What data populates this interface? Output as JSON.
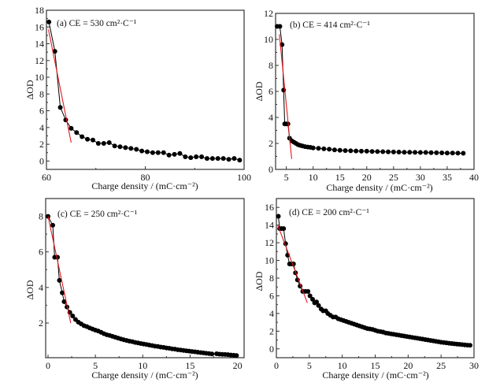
{
  "chart_data": [
    {
      "type": "scatter",
      "panel": "a",
      "annotation": "(a) CE = 530 cm²·C⁻¹",
      "xlabel": "Charge density / (mC·cm⁻²)",
      "ylabel": "ΔOD",
      "xlim": [
        60,
        100
      ],
      "ylim": [
        -1,
        18
      ],
      "xticks": [
        60,
        80,
        100
      ],
      "yticks": [
        0,
        2,
        4,
        6,
        8,
        10,
        12,
        14,
        16,
        18
      ],
      "x": [
        60.5,
        61.7,
        62.8,
        63.9,
        65.0,
        66.1,
        67.2,
        68.3,
        69.4,
        70.5,
        71.6,
        72.7,
        73.8,
        74.9,
        76.0,
        77.1,
        78.2,
        79.3,
        80.4,
        81.5,
        82.6,
        83.7,
        84.8,
        85.9,
        87.0,
        88.1,
        89.2,
        90.3,
        91.4,
        92.5,
        93.6,
        94.7,
        95.8,
        96.9,
        98.0,
        99.1
      ],
      "y": [
        16.6,
        13.1,
        6.4,
        4.9,
        3.9,
        3.4,
        2.9,
        2.6,
        2.5,
        2.1,
        2.1,
        2.2,
        1.8,
        1.7,
        1.6,
        1.5,
        1.4,
        1.2,
        1.1,
        1.0,
        1.0,
        1.0,
        0.7,
        0.8,
        0.9,
        0.5,
        0.4,
        0.5,
        0.5,
        0.3,
        0.3,
        0.3,
        0.3,
        0.2,
        0.3,
        0.1
      ],
      "fit_line": {
        "x": [
          60.4,
          65.0
        ],
        "y": [
          15.7,
          2.2
        ]
      }
    },
    {
      "type": "scatter",
      "panel": "b",
      "annotation": "(b) CE = 414 cm²·C⁻¹",
      "xlabel": "Charge density / (mC·cm⁻²)",
      "ylabel": "ΔOD",
      "xlim": [
        3,
        40
      ],
      "ylim": [
        0,
        12
      ],
      "xticks": [
        5,
        10,
        15,
        20,
        25,
        30,
        35,
        40
      ],
      "yticks": [
        0,
        2,
        4,
        6,
        8,
        10,
        12
      ],
      "x": [
        3.3,
        3.8,
        4.2,
        4.5,
        4.7,
        5.0,
        5.3,
        5.6,
        6.0,
        6.4,
        6.8,
        7.2,
        7.6,
        8.0,
        8.5,
        9.0,
        9.5,
        10.0,
        11.0,
        12.0,
        13.0,
        14.0,
        15.0,
        16.0,
        17.0,
        18.0,
        19.0,
        20.0,
        21.0,
        22.0,
        23.0,
        24.0,
        25.0,
        26.0,
        27.0,
        28.0,
        29.0,
        30.0,
        31.0,
        32.0,
        33.0,
        34.0,
        35.0,
        36.0,
        37.0,
        38.0
      ],
      "y": [
        11.0,
        11.0,
        9.6,
        6.1,
        3.5,
        3.5,
        3.5,
        2.4,
        2.2,
        2.1,
        2.0,
        1.9,
        1.85,
        1.8,
        1.75,
        1.72,
        1.7,
        1.65,
        1.62,
        1.58,
        1.55,
        1.5,
        1.47,
        1.45,
        1.43,
        1.42,
        1.4,
        1.4,
        1.38,
        1.37,
        1.36,
        1.35,
        1.34,
        1.33,
        1.32,
        1.32,
        1.31,
        1.3,
        1.3,
        1.29,
        1.28,
        1.27,
        1.26,
        1.26,
        1.25,
        1.24
      ],
      "fit_line": {
        "x": [
          3.7,
          6.0
        ],
        "y": [
          10.4,
          0.8
        ]
      }
    },
    {
      "type": "scatter",
      "panel": "c",
      "annotation": "(c) CE = 250 cm²·C⁻¹",
      "xlabel": "Charge density / (mC·cm⁻²)",
      "ylabel": "ΔOD",
      "xlim": [
        -0.25,
        20.7
      ],
      "ylim": [
        0.05,
        9.0
      ],
      "xticks": [
        0,
        5,
        10,
        15,
        20
      ],
      "yticks": [
        2,
        4,
        6,
        8
      ],
      "x": [
        0.0,
        0.5,
        0.7,
        1.0,
        1.2,
        1.5,
        1.7,
        2.0,
        2.3,
        2.6,
        2.9,
        3.2,
        3.5,
        3.8,
        4.1,
        4.4,
        4.7,
        5.0,
        5.3,
        5.6,
        5.9,
        6.2,
        6.5,
        6.8,
        7.1,
        7.4,
        7.7,
        8.0,
        8.3,
        8.6,
        8.9,
        9.2,
        9.5,
        9.8,
        10.1,
        10.4,
        10.7,
        11.0,
        11.3,
        11.6,
        11.9,
        12.2,
        12.5,
        12.8,
        13.1,
        13.4,
        13.7,
        14.0,
        14.3,
        14.6,
        14.9,
        15.2,
        15.5,
        15.8,
        16.1,
        16.4,
        16.7,
        17.0,
        17.3,
        17.8,
        18.1,
        18.4,
        18.7,
        19.0,
        19.3,
        19.6,
        19.9
      ],
      "y": [
        8.0,
        7.5,
        5.7,
        5.7,
        4.4,
        3.7,
        3.2,
        2.9,
        2.6,
        2.4,
        2.2,
        2.05,
        1.95,
        1.85,
        1.8,
        1.72,
        1.66,
        1.6,
        1.55,
        1.48,
        1.4,
        1.34,
        1.3,
        1.25,
        1.2,
        1.15,
        1.1,
        1.06,
        1.02,
        0.98,
        0.95,
        0.91,
        0.88,
        0.85,
        0.82,
        0.79,
        0.76,
        0.73,
        0.7,
        0.68,
        0.65,
        0.63,
        0.6,
        0.58,
        0.55,
        0.53,
        0.5,
        0.48,
        0.46,
        0.44,
        0.42,
        0.4,
        0.38,
        0.36,
        0.34,
        0.32,
        0.3,
        0.28,
        0.26,
        0.27,
        0.25,
        0.24,
        0.23,
        0.22,
        0.2,
        0.19,
        0.17
      ],
      "fit_line": {
        "x": [
          0.0,
          2.4
        ],
        "y": [
          8.0,
          2.0
        ]
      }
    },
    {
      "type": "scatter",
      "panel": "d",
      "annotation": "(d) CE = 200 cm²·C⁻¹",
      "xlabel": "Charge density / (mC·cm⁻²)",
      "ylabel": "ΔOD",
      "xlim": [
        0,
        30
      ],
      "ylim": [
        -1,
        17
      ],
      "xticks": [
        0,
        5,
        10,
        15,
        20,
        25,
        30
      ],
      "yticks": [
        0,
        2,
        4,
        6,
        8,
        10,
        12,
        14,
        16
      ],
      "x": [
        0.3,
        0.5,
        0.8,
        1.1,
        1.4,
        1.7,
        2.0,
        2.3,
        2.6,
        2.9,
        3.2,
        3.6,
        4.0,
        4.4,
        4.8,
        5.1,
        5.5,
        5.8,
        6.1,
        6.4,
        6.8,
        7.1,
        7.5,
        7.8,
        8.2,
        8.6,
        9.0,
        9.4,
        9.8,
        10.2,
        10.6,
        11.0,
        11.4,
        11.8,
        12.2,
        12.6,
        13.0,
        13.4,
        13.8,
        14.2,
        14.6,
        15.0,
        15.4,
        15.8,
        16.2,
        16.6,
        17.0,
        17.4,
        17.8,
        18.2,
        18.6,
        19.0,
        19.4,
        19.8,
        20.2,
        20.6,
        21.0,
        21.4,
        21.8,
        22.2,
        22.6,
        23.0,
        23.4,
        23.8,
        24.2,
        24.6,
        25.0,
        25.4,
        25.8,
        26.2,
        26.6,
        27.0,
        27.4,
        27.8,
        28.2,
        28.6,
        29.0,
        29.4
      ],
      "y": [
        15.0,
        13.6,
        13.6,
        13.6,
        11.9,
        10.6,
        9.6,
        9.6,
        9.6,
        8.6,
        7.8,
        7.1,
        6.5,
        6.5,
        6.5,
        6.0,
        5.6,
        5.2,
        5.3,
        4.9,
        4.5,
        4.3,
        4.3,
        4.0,
        3.8,
        3.6,
        3.6,
        3.4,
        3.3,
        3.2,
        3.1,
        3.0,
        2.9,
        2.8,
        2.7,
        2.6,
        2.5,
        2.4,
        2.3,
        2.25,
        2.2,
        2.1,
        2.0,
        1.95,
        1.9,
        1.8,
        1.75,
        1.7,
        1.65,
        1.6,
        1.55,
        1.5,
        1.45,
        1.4,
        1.35,
        1.3,
        1.25,
        1.2,
        1.15,
        1.1,
        1.05,
        1.0,
        0.95,
        0.9,
        0.85,
        0.8,
        0.75,
        0.72,
        0.68,
        0.64,
        0.6,
        0.57,
        0.54,
        0.51,
        0.48,
        0.45,
        0.42,
        0.4
      ],
      "fit_line": {
        "x": [
          0.2,
          4.7
        ],
        "y": [
          14.0,
          5.2
        ]
      }
    }
  ]
}
